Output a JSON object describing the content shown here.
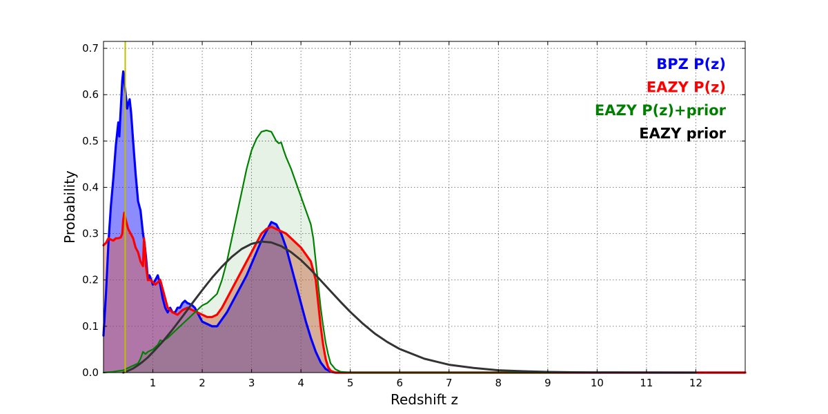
{
  "chart_data": {
    "type": "area",
    "title": "",
    "xlabel": "Redshift z",
    "ylabel": "Probability",
    "xlim": [
      0,
      13
    ],
    "ylim": [
      0,
      0.715
    ],
    "xticks": [
      1,
      2,
      3,
      4,
      5,
      6,
      7,
      8,
      9,
      10,
      11,
      12
    ],
    "xtick_labels": [
      "1",
      "2",
      "3",
      "4",
      "5",
      "6",
      "7",
      "8",
      "9",
      "10",
      "11",
      "12"
    ],
    "yticks": [
      0.0,
      0.1,
      0.2,
      0.3,
      0.4,
      0.5,
      0.6,
      0.7
    ],
    "ytick_labels": [
      "0.0",
      "0.1",
      "0.2",
      "0.3",
      "0.4",
      "0.5",
      "0.6",
      "0.7"
    ],
    "grid": true,
    "legend_position": "top-right",
    "vertical_line": {
      "x": 0.44,
      "color": "#bfbf00"
    },
    "series": [
      {
        "name": "BPZ P(z)",
        "color": "#0000ff",
        "fill": "rgba(0,0,255,0.45)",
        "line_width": 3.2,
        "points": [
          [
            0.0,
            0.08
          ],
          [
            0.05,
            0.17
          ],
          [
            0.1,
            0.28
          ],
          [
            0.15,
            0.36
          ],
          [
            0.2,
            0.42
          ],
          [
            0.25,
            0.49
          ],
          [
            0.3,
            0.54
          ],
          [
            0.32,
            0.51
          ],
          [
            0.35,
            0.57
          ],
          [
            0.38,
            0.63
          ],
          [
            0.4,
            0.65
          ],
          [
            0.43,
            0.62
          ],
          [
            0.46,
            0.59
          ],
          [
            0.48,
            0.57
          ],
          [
            0.5,
            0.58
          ],
          [
            0.53,
            0.59
          ],
          [
            0.56,
            0.56
          ],
          [
            0.6,
            0.5
          ],
          [
            0.65,
            0.43
          ],
          [
            0.7,
            0.37
          ],
          [
            0.75,
            0.35
          ],
          [
            0.8,
            0.3
          ],
          [
            0.83,
            0.28
          ],
          [
            0.86,
            0.25
          ],
          [
            0.9,
            0.2
          ],
          [
            0.93,
            0.21
          ],
          [
            0.97,
            0.2
          ],
          [
            1.0,
            0.19
          ],
          [
            1.05,
            0.2
          ],
          [
            1.1,
            0.21
          ],
          [
            1.15,
            0.19
          ],
          [
            1.2,
            0.16
          ],
          [
            1.25,
            0.14
          ],
          [
            1.3,
            0.13
          ],
          [
            1.35,
            0.14
          ],
          [
            1.4,
            0.13
          ],
          [
            1.45,
            0.13
          ],
          [
            1.5,
            0.14
          ],
          [
            1.55,
            0.14
          ],
          [
            1.6,
            0.15
          ],
          [
            1.65,
            0.155
          ],
          [
            1.7,
            0.15
          ],
          [
            1.75,
            0.148
          ],
          [
            1.8,
            0.145
          ],
          [
            1.85,
            0.14
          ],
          [
            1.9,
            0.13
          ],
          [
            1.95,
            0.12
          ],
          [
            2.0,
            0.11
          ],
          [
            2.1,
            0.105
          ],
          [
            2.2,
            0.1
          ],
          [
            2.3,
            0.1
          ],
          [
            2.4,
            0.115
          ],
          [
            2.5,
            0.13
          ],
          [
            2.6,
            0.15
          ],
          [
            2.7,
            0.17
          ],
          [
            2.8,
            0.19
          ],
          [
            2.9,
            0.21
          ],
          [
            3.0,
            0.235
          ],
          [
            3.1,
            0.26
          ],
          [
            3.2,
            0.285
          ],
          [
            3.3,
            0.305
          ],
          [
            3.4,
            0.325
          ],
          [
            3.5,
            0.32
          ],
          [
            3.6,
            0.3
          ],
          [
            3.7,
            0.27
          ],
          [
            3.8,
            0.23
          ],
          [
            3.9,
            0.19
          ],
          [
            4.0,
            0.15
          ],
          [
            4.1,
            0.11
          ],
          [
            4.2,
            0.075
          ],
          [
            4.3,
            0.045
          ],
          [
            4.4,
            0.022
          ],
          [
            4.5,
            0.008
          ],
          [
            4.6,
            0.002
          ],
          [
            4.7,
            0.0
          ],
          [
            13.0,
            0.0
          ]
        ]
      },
      {
        "name": "EAZY P(z)",
        "color": "#ff0000",
        "fill": "rgba(220,90,60,0.45)",
        "line_width": 3.2,
        "points": [
          [
            0.0,
            0.275
          ],
          [
            0.05,
            0.28
          ],
          [
            0.1,
            0.29
          ],
          [
            0.15,
            0.287
          ],
          [
            0.2,
            0.285
          ],
          [
            0.25,
            0.29
          ],
          [
            0.3,
            0.29
          ],
          [
            0.35,
            0.292
          ],
          [
            0.38,
            0.3
          ],
          [
            0.4,
            0.33
          ],
          [
            0.42,
            0.345
          ],
          [
            0.45,
            0.33
          ],
          [
            0.5,
            0.31
          ],
          [
            0.55,
            0.3
          ],
          [
            0.6,
            0.29
          ],
          [
            0.65,
            0.27
          ],
          [
            0.7,
            0.26
          ],
          [
            0.75,
            0.24
          ],
          [
            0.8,
            0.23
          ],
          [
            0.82,
            0.29
          ],
          [
            0.84,
            0.27
          ],
          [
            0.86,
            0.23
          ],
          [
            0.9,
            0.2
          ],
          [
            0.95,
            0.2
          ],
          [
            1.0,
            0.195
          ],
          [
            1.05,
            0.19
          ],
          [
            1.1,
            0.195
          ],
          [
            1.15,
            0.2
          ],
          [
            1.2,
            0.18
          ],
          [
            1.3,
            0.14
          ],
          [
            1.4,
            0.13
          ],
          [
            1.5,
            0.125
          ],
          [
            1.6,
            0.135
          ],
          [
            1.7,
            0.14
          ],
          [
            1.8,
            0.135
          ],
          [
            1.9,
            0.13
          ],
          [
            2.0,
            0.125
          ],
          [
            2.1,
            0.12
          ],
          [
            2.2,
            0.12
          ],
          [
            2.3,
            0.125
          ],
          [
            2.4,
            0.14
          ],
          [
            2.5,
            0.16
          ],
          [
            2.6,
            0.18
          ],
          [
            2.7,
            0.2
          ],
          [
            2.8,
            0.22
          ],
          [
            2.9,
            0.24
          ],
          [
            3.0,
            0.26
          ],
          [
            3.1,
            0.28
          ],
          [
            3.2,
            0.3
          ],
          [
            3.3,
            0.31
          ],
          [
            3.4,
            0.315
          ],
          [
            3.5,
            0.31
          ],
          [
            3.6,
            0.305
          ],
          [
            3.7,
            0.3
          ],
          [
            3.8,
            0.29
          ],
          [
            3.9,
            0.28
          ],
          [
            4.0,
            0.27
          ],
          [
            4.1,
            0.255
          ],
          [
            4.2,
            0.24
          ],
          [
            4.3,
            0.2
          ],
          [
            4.35,
            0.15
          ],
          [
            4.4,
            0.1
          ],
          [
            4.45,
            0.06
          ],
          [
            4.5,
            0.03
          ],
          [
            4.55,
            0.012
          ],
          [
            4.6,
            0.004
          ],
          [
            4.7,
            0.0
          ],
          [
            13.0,
            0.0
          ]
        ]
      },
      {
        "name": "EAZY P(z)+prior",
        "color": "#008000",
        "fill": "rgba(0,128,0,0.10)",
        "line_width": 2.2,
        "points": [
          [
            0.0,
            0.0
          ],
          [
            0.2,
            0.002
          ],
          [
            0.4,
            0.005
          ],
          [
            0.5,
            0.01
          ],
          [
            0.6,
            0.015
          ],
          [
            0.7,
            0.02
          ],
          [
            0.75,
            0.03
          ],
          [
            0.8,
            0.045
          ],
          [
            0.85,
            0.04
          ],
          [
            0.9,
            0.045
          ],
          [
            1.0,
            0.05
          ],
          [
            1.1,
            0.06
          ],
          [
            1.15,
            0.07
          ],
          [
            1.2,
            0.068
          ],
          [
            1.3,
            0.075
          ],
          [
            1.4,
            0.085
          ],
          [
            1.5,
            0.095
          ],
          [
            1.6,
            0.105
          ],
          [
            1.7,
            0.115
          ],
          [
            1.8,
            0.125
          ],
          [
            1.9,
            0.135
          ],
          [
            2.0,
            0.145
          ],
          [
            2.1,
            0.15
          ],
          [
            2.2,
            0.16
          ],
          [
            2.3,
            0.17
          ],
          [
            2.4,
            0.2
          ],
          [
            2.5,
            0.24
          ],
          [
            2.6,
            0.29
          ],
          [
            2.7,
            0.34
          ],
          [
            2.8,
            0.39
          ],
          [
            2.9,
            0.44
          ],
          [
            3.0,
            0.48
          ],
          [
            3.1,
            0.505
          ],
          [
            3.2,
            0.52
          ],
          [
            3.3,
            0.523
          ],
          [
            3.4,
            0.52
          ],
          [
            3.5,
            0.5
          ],
          [
            3.55,
            0.495
          ],
          [
            3.6,
            0.497
          ],
          [
            3.65,
            0.48
          ],
          [
            3.7,
            0.465
          ],
          [
            3.8,
            0.44
          ],
          [
            3.9,
            0.41
          ],
          [
            4.0,
            0.38
          ],
          [
            4.1,
            0.35
          ],
          [
            4.2,
            0.32
          ],
          [
            4.25,
            0.29
          ],
          [
            4.3,
            0.24
          ],
          [
            4.35,
            0.19
          ],
          [
            4.4,
            0.14
          ],
          [
            4.45,
            0.1
          ],
          [
            4.5,
            0.065
          ],
          [
            4.55,
            0.04
          ],
          [
            4.6,
            0.02
          ],
          [
            4.7,
            0.007
          ],
          [
            4.8,
            0.002
          ],
          [
            5.0,
            0.0
          ],
          [
            12.0,
            0.0
          ]
        ]
      },
      {
        "name": "EAZY prior",
        "color": "#333333",
        "fill": "none",
        "line_width": 3.0,
        "points": [
          [
            0.4,
            0.0
          ],
          [
            0.5,
            0.004
          ],
          [
            0.6,
            0.009
          ],
          [
            0.7,
            0.016
          ],
          [
            0.8,
            0.024
          ],
          [
            0.9,
            0.033
          ],
          [
            1.0,
            0.044
          ],
          [
            1.2,
            0.067
          ],
          [
            1.4,
            0.093
          ],
          [
            1.6,
            0.121
          ],
          [
            1.8,
            0.15
          ],
          [
            2.0,
            0.178
          ],
          [
            2.2,
            0.205
          ],
          [
            2.4,
            0.229
          ],
          [
            2.6,
            0.25
          ],
          [
            2.8,
            0.267
          ],
          [
            3.0,
            0.278
          ],
          [
            3.2,
            0.283
          ],
          [
            3.4,
            0.281
          ],
          [
            3.6,
            0.273
          ],
          [
            3.8,
            0.26
          ],
          [
            4.0,
            0.243
          ],
          [
            4.2,
            0.222
          ],
          [
            4.4,
            0.199
          ],
          [
            4.6,
            0.176
          ],
          [
            4.8,
            0.153
          ],
          [
            5.0,
            0.131
          ],
          [
            5.25,
            0.106
          ],
          [
            5.5,
            0.084
          ],
          [
            5.75,
            0.066
          ],
          [
            6.0,
            0.051
          ],
          [
            6.5,
            0.03
          ],
          [
            7.0,
            0.017
          ],
          [
            7.5,
            0.01
          ],
          [
            8.0,
            0.005
          ],
          [
            8.5,
            0.003
          ],
          [
            9.0,
            0.0015
          ],
          [
            9.5,
            0.0008
          ],
          [
            10.0,
            0.0004
          ],
          [
            11.0,
            0.0001
          ],
          [
            12.0,
            0.0
          ]
        ]
      }
    ]
  }
}
